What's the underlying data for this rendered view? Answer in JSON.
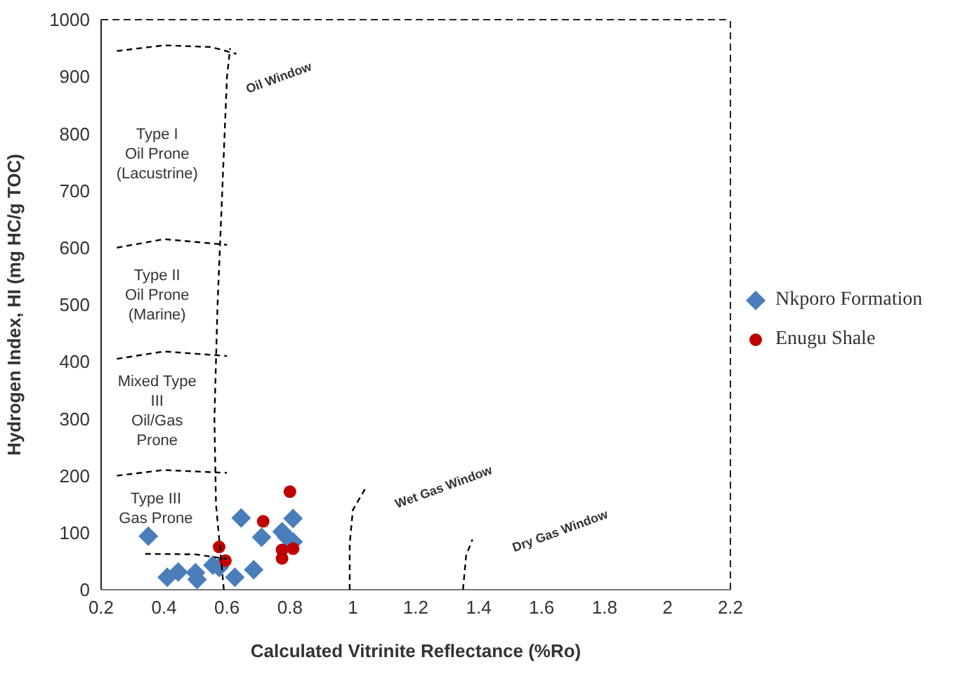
{
  "chart_data": {
    "type": "scatter",
    "xlabel": "Calculated Vitrinite Reflectance (%Ro)",
    "ylabel": "Hydrogen Index, HI (mg HC/g TOC)",
    "xlim": [
      0.2,
      2.2
    ],
    "xticks": [
      0.2,
      0.4,
      0.6,
      0.8,
      1,
      1.2,
      1.4,
      1.6,
      1.8,
      2,
      2.2
    ],
    "ylim": [
      0,
      1000
    ],
    "yticks": [
      0,
      100,
      200,
      300,
      400,
      500,
      600,
      700,
      800,
      900,
      1000
    ],
    "grid": false,
    "legend": "right",
    "series": [
      {
        "name": "Nkporo Formation",
        "marker": "diamond",
        "color": "#4a7ebb",
        "x": [
          0.41,
          0.445,
          0.5,
          0.505,
          0.555,
          0.575,
          0.625,
          0.685,
          0.645,
          0.71,
          0.775,
          0.81,
          0.79,
          0.81,
          0.35
        ],
        "values": [
          22,
          31,
          30,
          18,
          43,
          39,
          22,
          35,
          126,
          92,
          102,
          125,
          92,
          84,
          94
        ]
      },
      {
        "name": "Enugu Shale",
        "marker": "circle",
        "color": "#c00000",
        "x": [
          0.8,
          0.715,
          0.575,
          0.595,
          0.775,
          0.81,
          0.775
        ],
        "values": [
          172,
          120,
          75,
          51,
          70,
          72,
          55
        ]
      },
      {
        "type": "line",
        "line_style": "dashed",
        "color": "#000000",
        "x": [
          0.59,
          0.565,
          0.56,
          0.57,
          0.585,
          0.6,
          0.61
        ],
        "values": [
          0,
          150,
          300,
          500,
          700,
          900,
          950
        ]
      },
      {
        "type": "line",
        "line_style": "dashed",
        "color": "#000000",
        "x": [
          0.25,
          0.4,
          0.55,
          0.63
        ],
        "values": [
          945,
          955,
          952,
          940
        ]
      },
      {
        "type": "line",
        "line_style": "dashed",
        "color": "#000000",
        "x": [
          0.25,
          0.4,
          0.6
        ],
        "values": [
          600,
          615,
          605
        ]
      },
      {
        "type": "line",
        "line_style": "dashed",
        "color": "#000000",
        "x": [
          0.25,
          0.4,
          0.6
        ],
        "values": [
          405,
          418,
          410
        ]
      },
      {
        "type": "line",
        "line_style": "dashed",
        "color": "#000000",
        "x": [
          0.25,
          0.4,
          0.6
        ],
        "values": [
          200,
          210,
          205
        ]
      },
      {
        "type": "line",
        "line_style": "dashed",
        "color": "#000000",
        "x": [
          0.34,
          0.5,
          0.6
        ],
        "values": [
          63,
          62,
          54
        ]
      },
      {
        "type": "line",
        "line_style": "dashed",
        "color": "#000000",
        "x": [
          0.99,
          0.99,
          1,
          1.04
        ],
        "values": [
          0,
          80,
          140,
          178
        ]
      },
      {
        "type": "line",
        "line_style": "dashed",
        "color": "#000000",
        "x": [
          1.35,
          1.36,
          1.38
        ],
        "values": [
          0,
          60,
          88
        ]
      }
    ],
    "annotations": [
      "Type I\nOil Prone\n(Lacustrine)",
      "Type II\nOil Prone\n(Marine)",
      "Mixed Type\nIII\nOil/Gas\nProne",
      "Type III\nGas Prone",
      "Oil Window",
      "Wet Gas Window",
      "Dry Gas Window"
    ]
  }
}
